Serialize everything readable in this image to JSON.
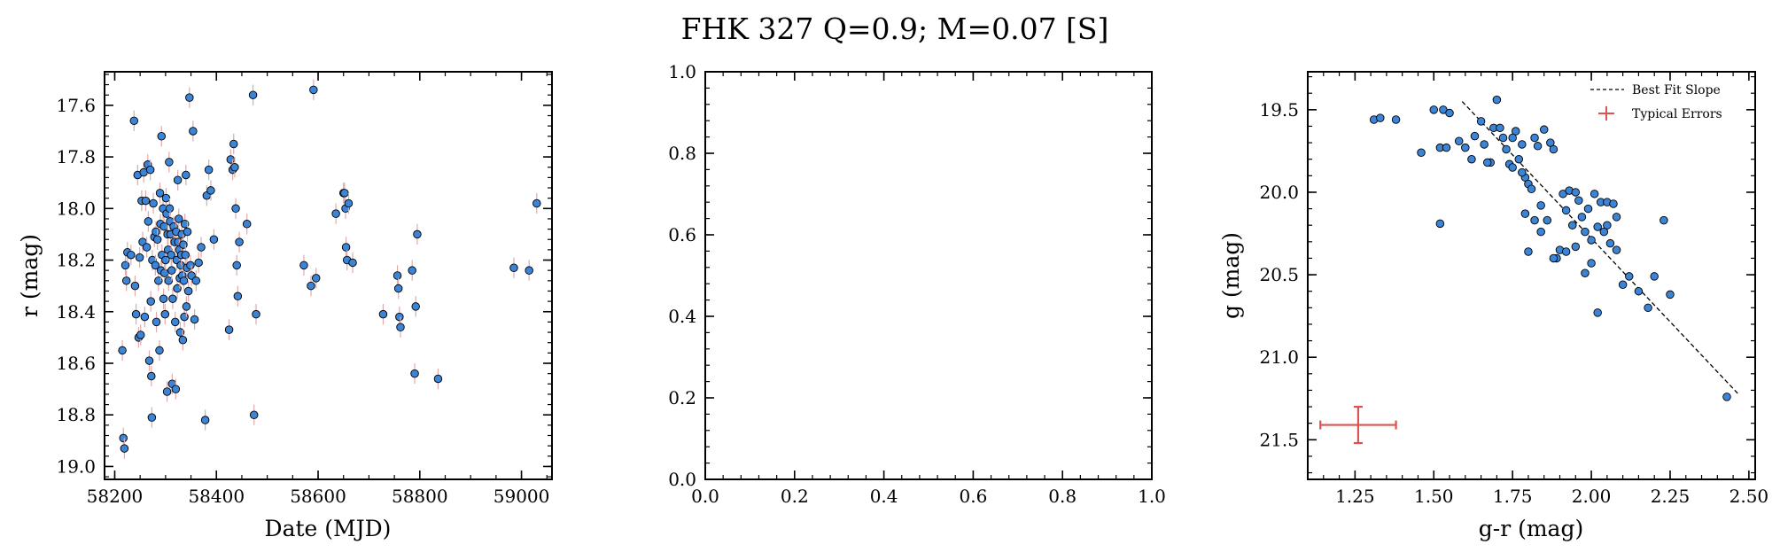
{
  "figure": {
    "title": "FHK 327  Q=0.9; M=0.07 [S]"
  },
  "colors": {
    "point": "#3b84d6",
    "point_edge": "#000000",
    "errorbar": "#e0aaaa",
    "fit_line": "#000000",
    "typical_error": "#d9534f"
  },
  "chart_data": [
    {
      "type": "scatter",
      "xlabel": "Date (MJD)",
      "ylabel": "r (mag)",
      "xlim": [
        58180,
        59060
      ],
      "ylim": [
        19.05,
        17.47
      ],
      "y_inverted": true,
      "xticks": [
        58200,
        58400,
        58600,
        58800,
        59000
      ],
      "yticks": [
        17.6,
        17.8,
        18.0,
        18.2,
        18.4,
        18.6,
        18.8,
        19.0
      ],
      "x": [
        58215,
        58217,
        58219,
        58221,
        58223,
        58225,
        58232,
        58238,
        58240,
        58242,
        58245,
        58247,
        58249,
        58251,
        58253,
        58255,
        58257,
        58259,
        58261,
        58263,
        58265,
        58266,
        58268,
        58270,
        58271,
        58272,
        58273,
        58274,
        58276,
        58278,
        58280,
        58281,
        58282,
        58284,
        58286,
        58288,
        58289,
        58290,
        58291,
        58292,
        58293,
        58295,
        58296,
        58297,
        58298,
        58299,
        58300,
        58301,
        58302,
        58303,
        58304,
        58305,
        58306,
        58307,
        58308,
        58309,
        58310,
        58311,
        58312,
        58313,
        58314,
        58316,
        58318,
        58319,
        58320,
        58321,
        58322,
        58323,
        58324,
        58325,
        58326,
        58327,
        58328,
        58329,
        58330,
        58331,
        58332,
        58333,
        58334,
        58335,
        58336,
        58337,
        58338,
        58339,
        58340,
        58341,
        58342,
        58343,
        58345,
        58347,
        58349,
        58351,
        58354,
        58357,
        58360,
        58365,
        58370,
        58378,
        58381,
        58385,
        58389,
        58395,
        58425,
        58428,
        58432,
        58434,
        58436,
        58438,
        58440,
        58442,
        58445,
        58460,
        58472,
        58474,
        58478,
        58572,
        58586,
        58591,
        58596,
        58635,
        58650,
        58652,
        58654,
        58655,
        58657,
        58660,
        58668,
        58728,
        58756,
        58758,
        58760,
        58762,
        58785,
        58790,
        58792,
        58795,
        58836,
        58985,
        59015,
        59030
      ],
      "y": [
        18.55,
        18.89,
        18.93,
        18.22,
        18.28,
        18.17,
        18.18,
        17.66,
        18.3,
        18.41,
        17.87,
        18.5,
        18.19,
        18.49,
        17.97,
        18.13,
        17.86,
        18.42,
        17.97,
        18.15,
        17.83,
        18.05,
        18.59,
        17.85,
        18.36,
        18.65,
        18.81,
        18.2,
        17.98,
        18.11,
        18.22,
        18.09,
        18.44,
        18.12,
        18.28,
        18.55,
        17.94,
        18.06,
        18.24,
        17.72,
        18.18,
        18.0,
        18.35,
        18.07,
        18.25,
        18.41,
        18.2,
        17.96,
        18.02,
        18.71,
        18.1,
        18.16,
        18.28,
        17.82,
        18.0,
        18.05,
        18.1,
        18.18,
        18.24,
        18.68,
        18.35,
        18.07,
        18.13,
        18.44,
        18.7,
        18.09,
        18.2,
        18.31,
        17.89,
        18.13,
        18.04,
        18.16,
        18.27,
        18.48,
        18.22,
        18.18,
        18.1,
        18.26,
        18.51,
        18.14,
        18.28,
        18.42,
        18.06,
        18.18,
        17.87,
        18.38,
        18.23,
        18.09,
        18.32,
        17.57,
        18.22,
        18.26,
        17.7,
        18.43,
        18.28,
        18.21,
        18.15,
        18.82,
        17.95,
        17.85,
        17.93,
        18.12,
        18.47,
        17.81,
        17.85,
        17.75,
        17.84,
        18.0,
        18.22,
        18.34,
        18.13,
        18.06,
        17.56,
        18.8,
        18.41,
        18.22,
        18.3,
        17.54,
        18.27,
        18.02,
        17.94,
        17.94,
        18.0,
        18.15,
        18.2,
        17.98,
        18.21,
        18.41,
        18.26,
        18.31,
        18.42,
        18.46,
        18.24,
        18.64,
        18.38,
        18.1,
        18.66,
        18.23,
        18.24,
        17.98
      ],
      "yerr": 0.04
    },
    {
      "type": "scatter",
      "xlabel": "",
      "ylabel": "",
      "xlim": [
        0.0,
        1.0
      ],
      "ylim": [
        0.0,
        1.0
      ],
      "xticks": [
        "0.0",
        "0.2",
        "0.4",
        "0.6",
        "0.8",
        "1.0"
      ],
      "yticks": [
        "0.0",
        "0.2",
        "0.4",
        "0.6",
        "0.8",
        "1.0"
      ],
      "x": [],
      "y": []
    },
    {
      "type": "scatter",
      "xlabel": "g-r (mag)",
      "ylabel": "g (mag)",
      "xlim": [
        1.1,
        2.52
      ],
      "ylim": [
        21.74,
        19.27
      ],
      "y_inverted": true,
      "xticks": [
        "1.25",
        "1.50",
        "1.75",
        "2.00",
        "2.25",
        "2.50"
      ],
      "yticks": [
        "19.5",
        "20.0",
        "20.5",
        "21.0",
        "21.5"
      ],
      "x": [
        1.31,
        1.33,
        1.38,
        1.46,
        1.5,
        1.52,
        1.53,
        1.54,
        1.55,
        1.58,
        1.62,
        1.63,
        1.65,
        1.66,
        1.68,
        1.69,
        1.7,
        1.72,
        1.73,
        1.74,
        1.75,
        1.76,
        1.77,
        1.78,
        1.79,
        1.8,
        1.81,
        1.82,
        1.83,
        1.84,
        1.85,
        1.86,
        1.87,
        1.88,
        1.89,
        1.9,
        1.91,
        1.92,
        1.93,
        1.94,
        1.95,
        1.96,
        1.97,
        1.98,
        1.99,
        2.0,
        2.01,
        2.02,
        2.03,
        2.04,
        2.05,
        2.06,
        2.07,
        2.08,
        2.1,
        2.12,
        2.15,
        2.18,
        2.2,
        2.23,
        2.25,
        2.43,
        1.52,
        1.79,
        1.8,
        1.84,
        1.88,
        1.92,
        1.95,
        1.98,
        2.0,
        2.02,
        2.05,
        2.08,
        1.6,
        1.67,
        1.71,
        1.75,
        1.78,
        1.82
      ],
      "y": [
        19.56,
        19.55,
        19.56,
        19.76,
        19.5,
        19.73,
        19.5,
        19.73,
        19.52,
        19.69,
        19.8,
        19.66,
        19.57,
        19.71,
        19.82,
        19.61,
        19.44,
        19.67,
        19.74,
        19.83,
        19.85,
        19.63,
        19.8,
        19.71,
        19.91,
        19.95,
        19.98,
        19.67,
        19.72,
        20.08,
        19.62,
        20.17,
        19.7,
        19.74,
        20.4,
        20.35,
        20.01,
        20.36,
        19.99,
        20.2,
        20.0,
        20.05,
        20.15,
        20.24,
        20.1,
        20.29,
        20.01,
        20.21,
        20.06,
        20.24,
        20.06,
        20.31,
        20.07,
        20.15,
        20.56,
        20.51,
        20.6,
        20.7,
        20.51,
        20.17,
        20.62,
        21.24,
        20.19,
        20.13,
        20.36,
        20.24,
        20.4,
        20.11,
        20.33,
        20.49,
        20.43,
        20.73,
        20.2,
        20.35,
        19.73,
        19.82,
        19.61,
        19.67,
        19.88,
        20.17
      ],
      "fit_line": {
        "x": [
          1.59,
          2.47
        ],
        "y": [
          19.45,
          21.23
        ]
      },
      "typical_error": {
        "x": 1.26,
        "y": 21.41,
        "xerr": 0.12,
        "yerr": 0.11
      },
      "legend_position": "upper right",
      "legend": {
        "fit_label": "Best Fit Slope",
        "error_label": "Typical Errors"
      }
    }
  ]
}
